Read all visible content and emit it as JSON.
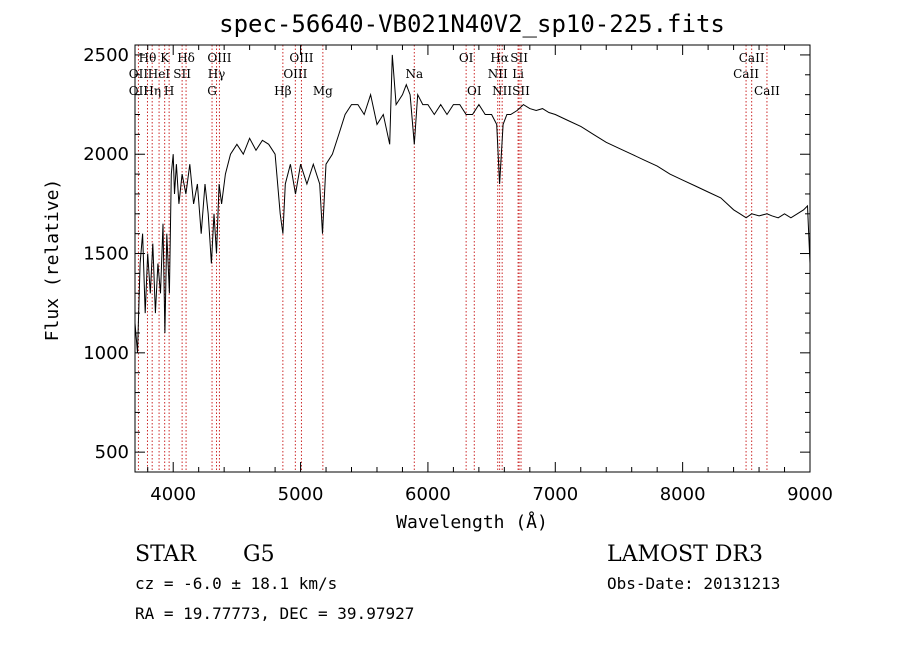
{
  "chart_data": {
    "type": "line",
    "title": "spec-56640-VB021N40V2_sp10-225.fits",
    "xlabel": "Wavelength (Å)",
    "ylabel": "Flux (relative)",
    "xlim": [
      3700,
      9000
    ],
    "ylim": [
      400,
      2550
    ],
    "xticks": [
      4000,
      5000,
      6000,
      7000,
      8000,
      9000
    ],
    "yticks": [
      500,
      1000,
      1500,
      2000,
      2500
    ],
    "grid": false,
    "legend": "none",
    "series": [
      {
        "x": [
          3700,
          3720,
          3740,
          3760,
          3780,
          3800,
          3820,
          3840,
          3860,
          3880,
          3900,
          3920,
          3935,
          3950,
          3970,
          3985,
          4000,
          4010,
          4025,
          4045,
          4070,
          4100,
          4130,
          4160,
          4190,
          4220,
          4250,
          4275,
          4300,
          4320,
          4340,
          4360,
          4380,
          4410,
          4450,
          4500,
          4550,
          4600,
          4650,
          4700,
          4750,
          4800,
          4840,
          4861,
          4880,
          4920,
          4960,
          5000,
          5050,
          5100,
          5150,
          5172,
          5200,
          5250,
          5300,
          5350,
          5400,
          5450,
          5500,
          5550,
          5600,
          5650,
          5700,
          5720,
          5750,
          5800,
          5830,
          5860,
          5893,
          5920,
          5960,
          6000,
          6050,
          6100,
          6150,
          6200,
          6250,
          6300,
          6350,
          6400,
          6450,
          6500,
          6540,
          6563,
          6590,
          6620,
          6650,
          6700,
          6750,
          6800,
          6850,
          6900,
          6950,
          7000,
          7100,
          7200,
          7300,
          7400,
          7500,
          7600,
          7700,
          7800,
          7900,
          8000,
          8100,
          8200,
          8300,
          8400,
          8450,
          8498,
          8542,
          8600,
          8662,
          8700,
          8750,
          8800,
          8850,
          8900,
          8950,
          8980,
          9000
        ],
        "values": [
          1150,
          1000,
          1450,
          1600,
          1200,
          1500,
          1300,
          1550,
          1200,
          1450,
          1300,
          1650,
          1100,
          1600,
          1300,
          1900,
          2000,
          1800,
          1950,
          1750,
          1900,
          1800,
          1950,
          1750,
          1850,
          1600,
          1850,
          1700,
          1450,
          1700,
          1500,
          1850,
          1750,
          1900,
          2000,
          2050,
          2000,
          2080,
          2020,
          2070,
          2050,
          2000,
          1700,
          1600,
          1850,
          1950,
          1800,
          1950,
          1850,
          1950,
          1850,
          1600,
          1950,
          2000,
          2100,
          2200,
          2250,
          2250,
          2200,
          2300,
          2150,
          2200,
          2050,
          2500,
          2250,
          2300,
          2350,
          2300,
          2050,
          2300,
          2250,
          2250,
          2200,
          2250,
          2200,
          2250,
          2250,
          2200,
          2200,
          2250,
          2200,
          2200,
          2150,
          1850,
          2150,
          2200,
          2200,
          2220,
          2250,
          2230,
          2220,
          2230,
          2210,
          2200,
          2170,
          2140,
          2100,
          2060,
          2030,
          2000,
          1970,
          1940,
          1900,
          1870,
          1840,
          1810,
          1780,
          1720,
          1700,
          1680,
          1700,
          1690,
          1700,
          1690,
          1680,
          1700,
          1680,
          1700,
          1720,
          1740,
          1450
        ]
      }
    ],
    "line_labels": [
      {
        "text": "Hθ",
        "x": 3798,
        "row": 1
      },
      {
        "text": "K",
        "x": 3933,
        "row": 1
      },
      {
        "text": "Hδ",
        "x": 4101,
        "row": 1
      },
      {
        "text": "OIII",
        "x": 4363,
        "row": 1
      },
      {
        "text": "OIII",
        "x": 5007,
        "row": 1
      },
      {
        "text": "OI",
        "x": 6300,
        "row": 1
      },
      {
        "text": "Hα",
        "x": 6563,
        "row": 1
      },
      {
        "text": "SII",
        "x": 6716,
        "row": 1
      },
      {
        "text": "CaII",
        "x": 8542,
        "row": 1
      },
      {
        "text": "OII",
        "x": 3727,
        "row": 2
      },
      {
        "text": "HeI",
        "x": 3888,
        "row": 2
      },
      {
        "text": "SII",
        "x": 4070,
        "row": 2
      },
      {
        "text": "Hγ",
        "x": 4340,
        "row": 2
      },
      {
        "text": "OIII",
        "x": 4959,
        "row": 2
      },
      {
        "text": "Na",
        "x": 5893,
        "row": 2
      },
      {
        "text": "NII",
        "x": 6548,
        "row": 2
      },
      {
        "text": "Li",
        "x": 6708,
        "row": 2
      },
      {
        "text": "CaII",
        "x": 8498,
        "row": 2
      },
      {
        "text": "OII",
        "x": 3727,
        "row": 3
      },
      {
        "text": "Hη",
        "x": 3835,
        "row": 3
      },
      {
        "text": "H",
        "x": 3968,
        "row": 3
      },
      {
        "text": "G",
        "x": 4305,
        "row": 3
      },
      {
        "text": "Hβ",
        "x": 4861,
        "row": 3
      },
      {
        "text": "Mg",
        "x": 5175,
        "row": 3
      },
      {
        "text": "OI",
        "x": 6364,
        "row": 3
      },
      {
        "text": "NII",
        "x": 6583,
        "row": 3
      },
      {
        "text": "SII",
        "x": 6731,
        "row": 3
      },
      {
        "text": "CaII",
        "x": 8662,
        "row": 3
      }
    ],
    "line_positions": [
      3727,
      3798,
      3835,
      3889,
      3933,
      3968,
      4070,
      4101,
      4305,
      4340,
      4363,
      4861,
      4959,
      5007,
      5175,
      5893,
      6300,
      6364,
      6548,
      6563,
      6583,
      6708,
      6716,
      6731,
      8498,
      8542,
      8662
    ],
    "colors": {
      "spectrum": "#000000",
      "line_marker": "#cc2a2a",
      "axis": "#000000"
    }
  },
  "info": {
    "class": "STAR",
    "subclass": "G5",
    "survey": "LAMOST DR3",
    "cz": "cz = -6.0 ± 18.1 km/s",
    "obs_date": "Obs-Date: 20131213",
    "radec": "RA =  19.77773, DEC =  39.97927"
  }
}
